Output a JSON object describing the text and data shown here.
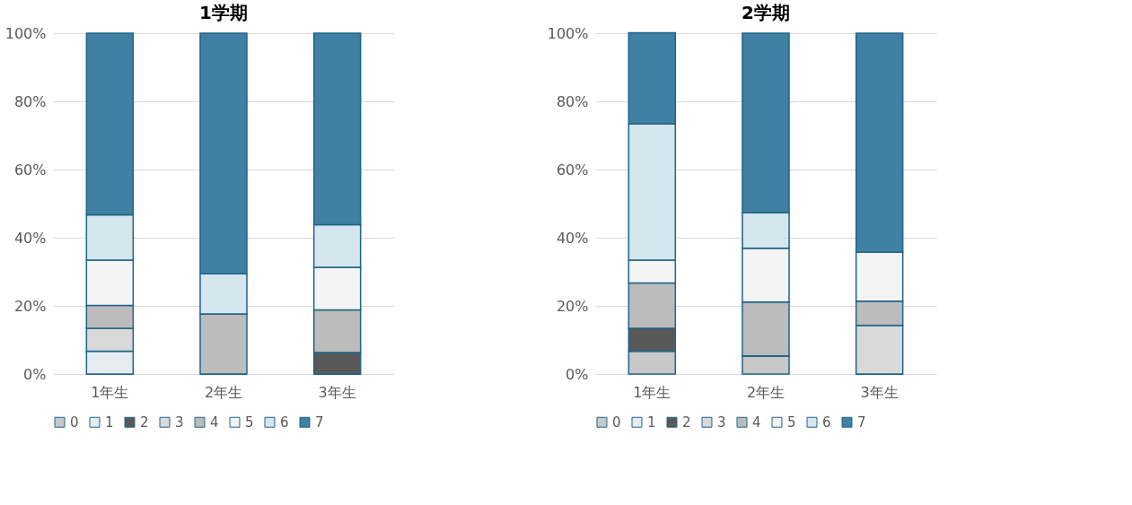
{
  "chart_data": [
    {
      "type": "bar",
      "stacked": true,
      "title": "1学期",
      "categories": [
        "1年生",
        "2年生",
        "3年生"
      ],
      "ylim": [
        0,
        100
      ],
      "yticks": [
        {
          "value": 0,
          "label": "0%"
        },
        {
          "value": 20,
          "label": "20%"
        },
        {
          "value": 40,
          "label": "40%"
        },
        {
          "value": 60,
          "label": "60%"
        },
        {
          "value": 80,
          "label": "80%"
        },
        {
          "value": 100,
          "label": "100%"
        }
      ],
      "grid": "y",
      "legend": "bottom",
      "series": [
        {
          "name": "0",
          "color": "#c8c8c8",
          "values": [
            0,
            0,
            0
          ]
        },
        {
          "name": "1",
          "color": "#e4ecf1",
          "values": [
            6.7,
            0,
            0
          ]
        },
        {
          "name": "2",
          "color": "#595959",
          "values": [
            0,
            0,
            6.3
          ]
        },
        {
          "name": "3",
          "color": "#d9d9d9",
          "values": [
            6.7,
            0,
            0
          ]
        },
        {
          "name": "4",
          "color": "#bcbcbc",
          "values": [
            6.7,
            17.6,
            12.5
          ]
        },
        {
          "name": "5",
          "color": "#f4f4f4",
          "values": [
            13.3,
            0,
            12.5
          ]
        },
        {
          "name": "6",
          "color": "#d6e6ee",
          "values": [
            13.3,
            11.8,
            12.5
          ]
        },
        {
          "name": "7",
          "color": "#3f80a3",
          "values": [
            53.3,
            70.6,
            56.2
          ]
        }
      ]
    },
    {
      "type": "bar",
      "stacked": true,
      "title": "2学期",
      "categories": [
        "1年生",
        "2年生",
        "3年生"
      ],
      "ylim": [
        0,
        100
      ],
      "yticks": [
        {
          "value": 0,
          "label": "0%"
        },
        {
          "value": 20,
          "label": "20%"
        },
        {
          "value": 40,
          "label": "40%"
        },
        {
          "value": 60,
          "label": "60%"
        },
        {
          "value": 80,
          "label": "80%"
        },
        {
          "value": 100,
          "label": "100%"
        }
      ],
      "grid": "y",
      "legend": "bottom",
      "series": [
        {
          "name": "0",
          "color": "#c8c8c8",
          "values": [
            6.7,
            5.3,
            0
          ]
        },
        {
          "name": "1",
          "color": "#e4ecf1",
          "values": [
            0,
            0,
            0
          ]
        },
        {
          "name": "2",
          "color": "#595959",
          "values": [
            6.7,
            0,
            0
          ]
        },
        {
          "name": "3",
          "color": "#d9d9d9",
          "values": [
            0,
            0,
            14.3
          ]
        },
        {
          "name": "4",
          "color": "#bcbcbc",
          "values": [
            13.3,
            15.8,
            7.1
          ]
        },
        {
          "name": "5",
          "color": "#f4f4f4",
          "values": [
            6.7,
            15.8,
            14.3
          ]
        },
        {
          "name": "6",
          "color": "#d6e6ee",
          "values": [
            40,
            10.5,
            0
          ]
        },
        {
          "name": "7",
          "color": "#3f80a3",
          "values": [
            26.7,
            52.6,
            64.3
          ]
        }
      ]
    }
  ]
}
